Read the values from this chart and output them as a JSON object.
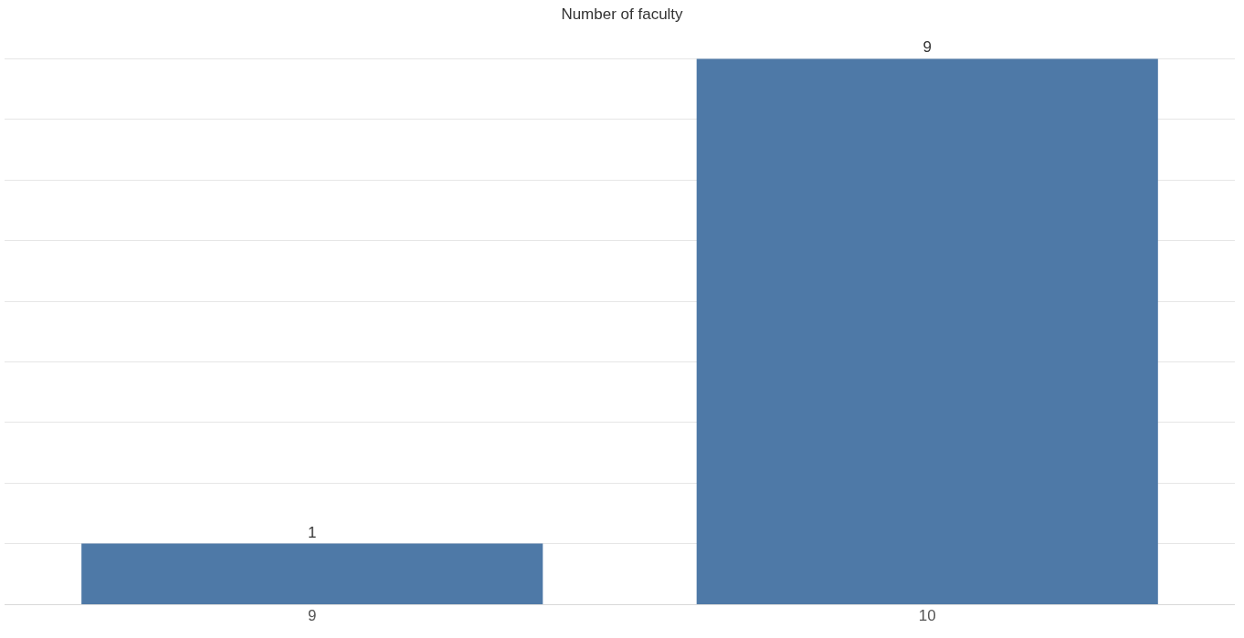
{
  "chart_data": {
    "type": "bar",
    "title": "Number of faculty",
    "categories": [
      "9",
      "10"
    ],
    "values": [
      1,
      9
    ],
    "color": "#4e79a7",
    "data_labels": true,
    "grid": "y",
    "tick_labels": "x",
    "legend": false
  }
}
